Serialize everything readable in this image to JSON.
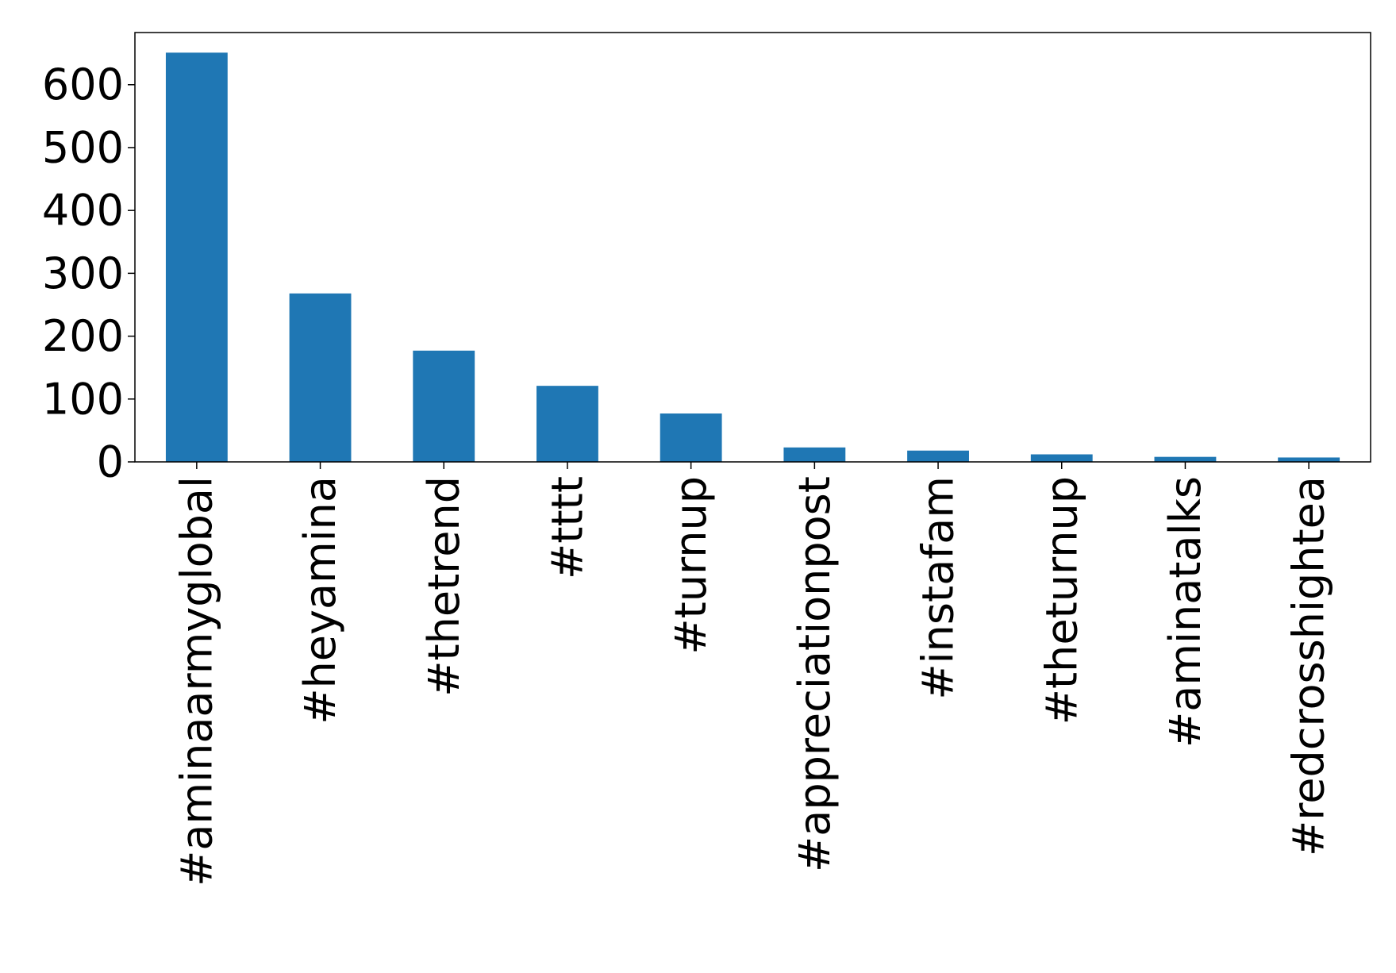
{
  "chart_data": {
    "type": "bar",
    "title": "",
    "xlabel": "",
    "ylabel": "",
    "categories": [
      "#aminaarmyglobal",
      "#heyamina",
      "#thetrend",
      "#tttt",
      "#turnup",
      "#appreciationpost",
      "#instafam",
      "#theturnup",
      "#aminatalks",
      "#redcrosshightea"
    ],
    "values": [
      651,
      268,
      177,
      121,
      77,
      23,
      18,
      12,
      8,
      7
    ],
    "ylim": [
      0,
      683
    ],
    "yticks": [
      0,
      100,
      200,
      300,
      400,
      500,
      600
    ],
    "bar_color": "#1f77b4",
    "grid": false,
    "legend": "none"
  }
}
